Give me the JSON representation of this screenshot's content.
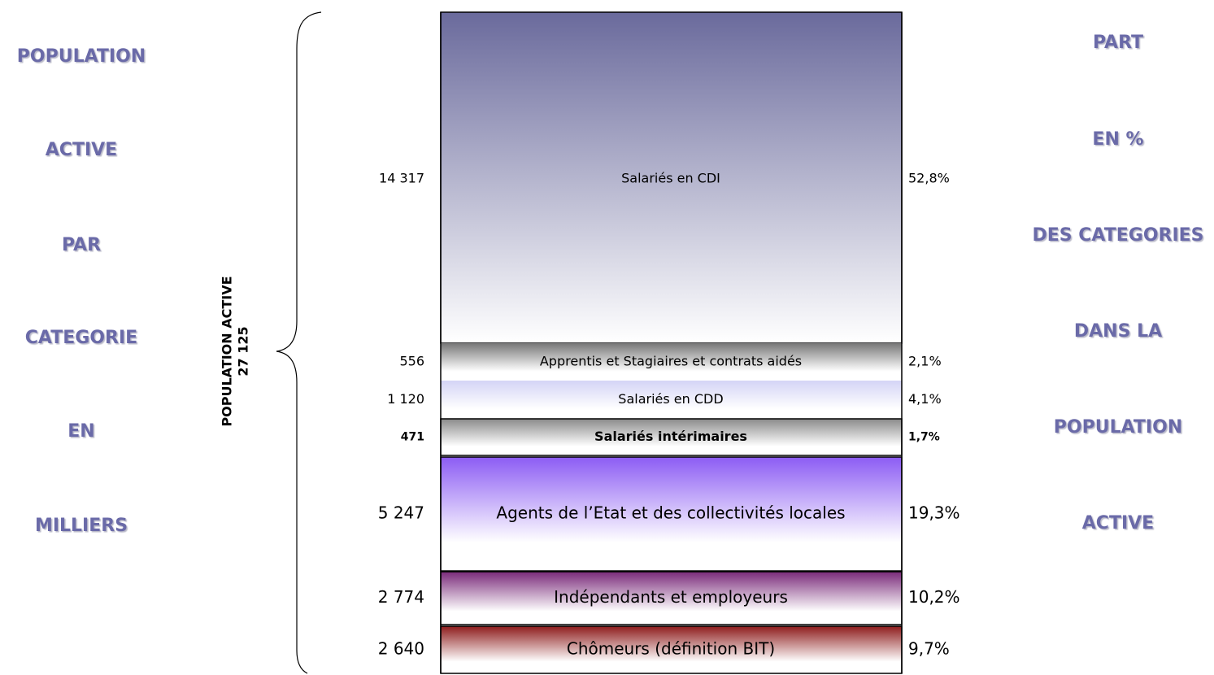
{
  "left_title": [
    "POPULATION",
    "ACTIVE",
    "PAR",
    "CATEGORIE",
    "EN",
    "MILLIERS"
  ],
  "right_title": [
    "PART",
    "EN %",
    "DES CATEGORIES",
    "DANS LA",
    "POPULATION",
    "ACTIVE"
  ],
  "brace_label": [
    "POPULATION ACTIVE",
    "27 125"
  ],
  "segments": [
    {
      "label": "Salariés en CDI",
      "value": "14 317",
      "share": "52,8%"
    },
    {
      "label": "Apprentis et Stagiaires et contrats aidés",
      "value": "556",
      "share": "2,1%"
    },
    {
      "label": "Salariés en CDD",
      "value": "1 120",
      "share": "4,1%"
    },
    {
      "label": "Salariés intérimaires",
      "value": "471",
      "share": "1,7%"
    },
    {
      "label": "Agents de l’Etat et des collectivités locales",
      "value": "5 247",
      "share": "19,3%"
    },
    {
      "label": "Indépendants et employeurs",
      "value": "2 774",
      "share": "10,2%"
    },
    {
      "label": "Chômeurs (définition BIT)",
      "value": "2 640",
      "share": "9,7%"
    }
  ]
}
